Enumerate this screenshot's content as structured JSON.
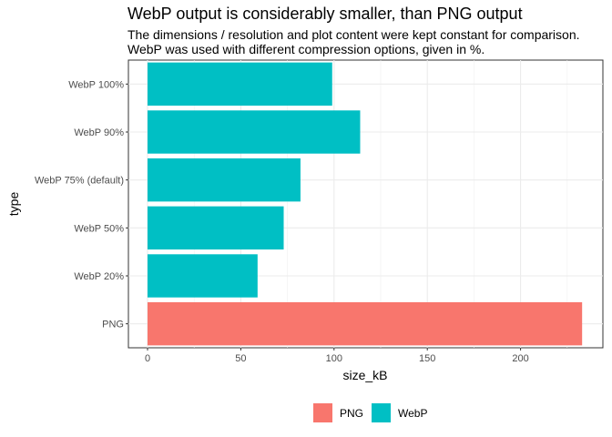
{
  "colors": {
    "PNG": "#F8766D",
    "WebP": "#00BFC4"
  },
  "chart_data": {
    "type": "bar",
    "orientation": "horizontal",
    "title": "WebP output is considerably smaller, than PNG output",
    "subtitle": [
      "The dimensions / resolution and plot content were kept constant for comparison.",
      "WebP was used with different compression options, given in %."
    ],
    "xlabel": "size_kB",
    "ylabel": "type",
    "xlim": [
      0,
      236
    ],
    "xticks": [
      0,
      50,
      100,
      150,
      200
    ],
    "grid": true,
    "legend_position": "bottom",
    "legend": [
      "PNG",
      "WebP"
    ],
    "categories": [
      "PNG",
      "WebP 20%",
      "WebP 50%",
      "WebP 75% (default)",
      "WebP 90%",
      "WebP 100%"
    ],
    "values": [
      233,
      59,
      73,
      82,
      114,
      99
    ],
    "groups": [
      "PNG",
      "WebP",
      "WebP",
      "WebP",
      "WebP",
      "WebP"
    ]
  }
}
